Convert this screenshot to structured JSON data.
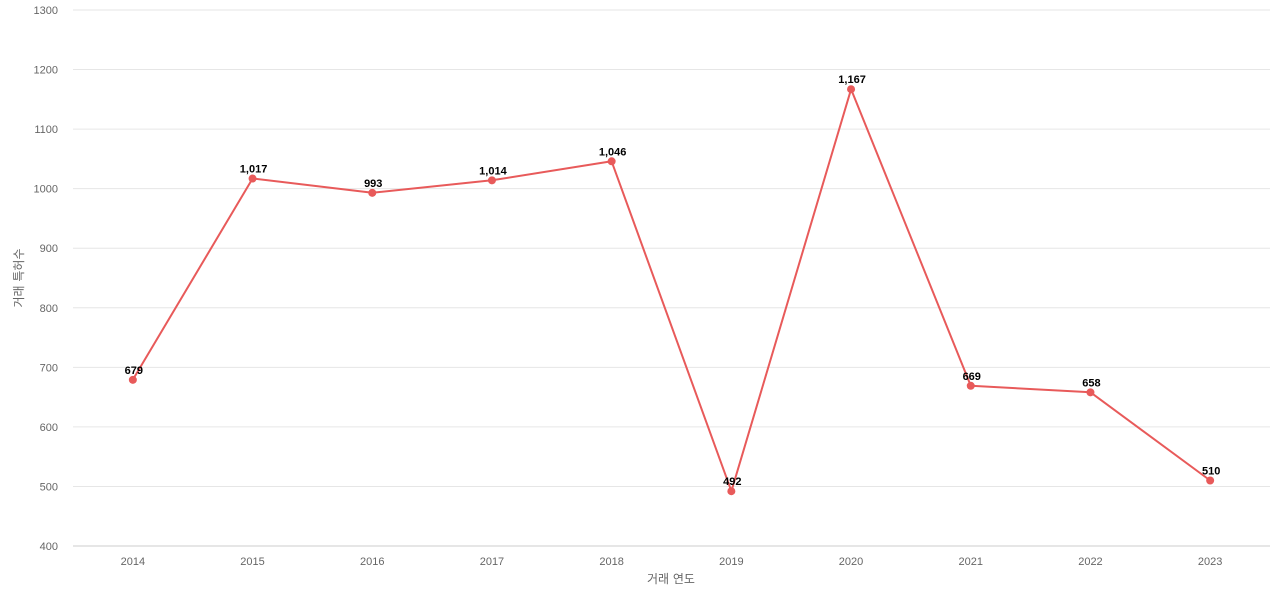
{
  "chart_data": {
    "type": "line",
    "title": "",
    "xlabel": "거래 연도",
    "ylabel": "거래 특허수",
    "categories": [
      "2014",
      "2015",
      "2016",
      "2017",
      "2018",
      "2019",
      "2020",
      "2021",
      "2022",
      "2023"
    ],
    "series": [
      {
        "values": [
          679,
          1017,
          993,
          1014,
          1046,
          492,
          1167,
          669,
          658,
          510
        ],
        "labels": [
          "679",
          "1,017",
          "993",
          "1,014",
          "1,046",
          "492",
          "1,167",
          "669",
          "658",
          "510"
        ],
        "color": "#e85a5a"
      }
    ],
    "ylim": [
      400,
      1300
    ],
    "yticks": [
      "400",
      "500",
      "600",
      "700",
      "800",
      "900",
      "1000",
      "1100",
      "1200",
      "1300"
    ],
    "grid": true,
    "legend": "none"
  }
}
